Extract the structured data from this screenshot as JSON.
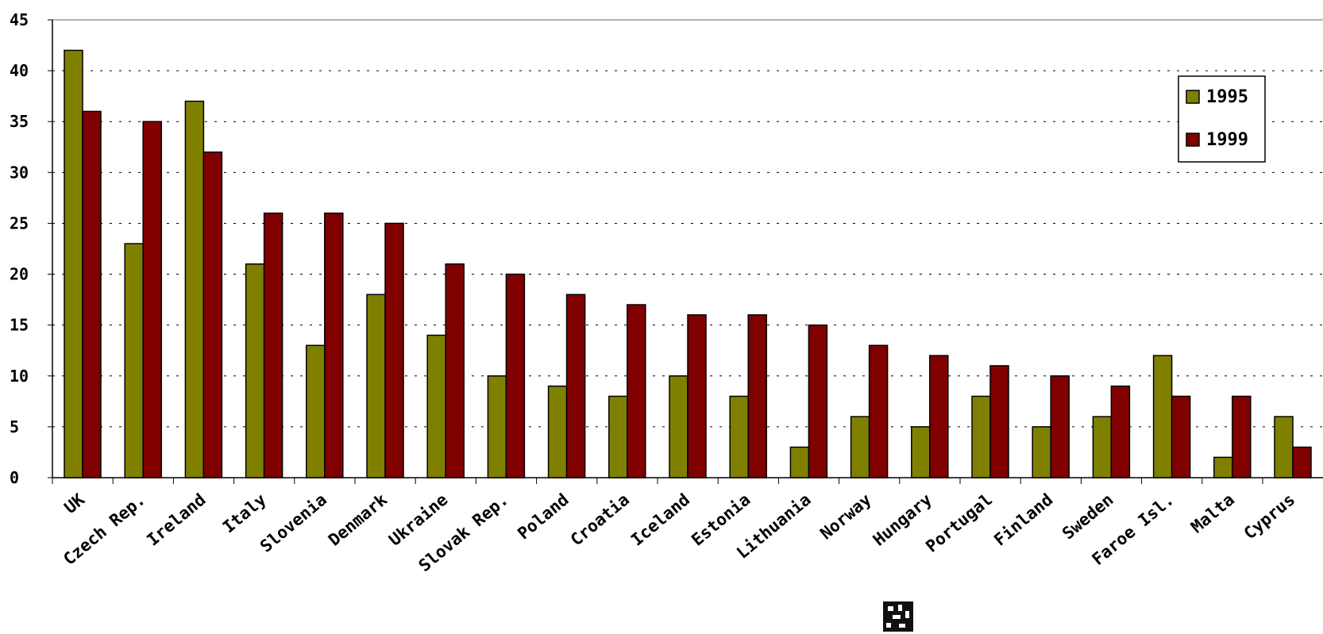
{
  "chart_data": {
    "type": "bar",
    "title": "",
    "xlabel": "",
    "ylabel": "",
    "ylim": [
      0,
      45
    ],
    "yticks": [
      0,
      5,
      10,
      15,
      20,
      25,
      30,
      35,
      40,
      45
    ],
    "grid": true,
    "legend_position": "top-right",
    "categories": [
      "UK",
      "Czech Rep.",
      "Ireland",
      "Italy",
      "Slovenia",
      "Denmark",
      "Ukraine",
      "Slovak Rep.",
      "Poland",
      "Croatia",
      "Iceland",
      "Estonia",
      "Lithuania",
      "Norway",
      "Hungary",
      "Portugal",
      "Finland",
      "Sweden",
      "Faroe Isl.",
      "Malta",
      "Cyprus"
    ],
    "series": [
      {
        "name": "1995",
        "color": "#808000",
        "values": [
          42,
          23,
          37,
          21,
          13,
          18,
          14,
          10,
          9,
          8,
          10,
          8,
          3,
          6,
          5,
          8,
          5,
          6,
          12,
          2,
          6
        ]
      },
      {
        "name": "1999",
        "color": "#800000",
        "values": [
          36,
          35,
          32,
          26,
          26,
          25,
          21,
          20,
          18,
          17,
          16,
          16,
          15,
          13,
          12,
          11,
          10,
          9,
          8,
          8,
          3
        ]
      }
    ]
  }
}
